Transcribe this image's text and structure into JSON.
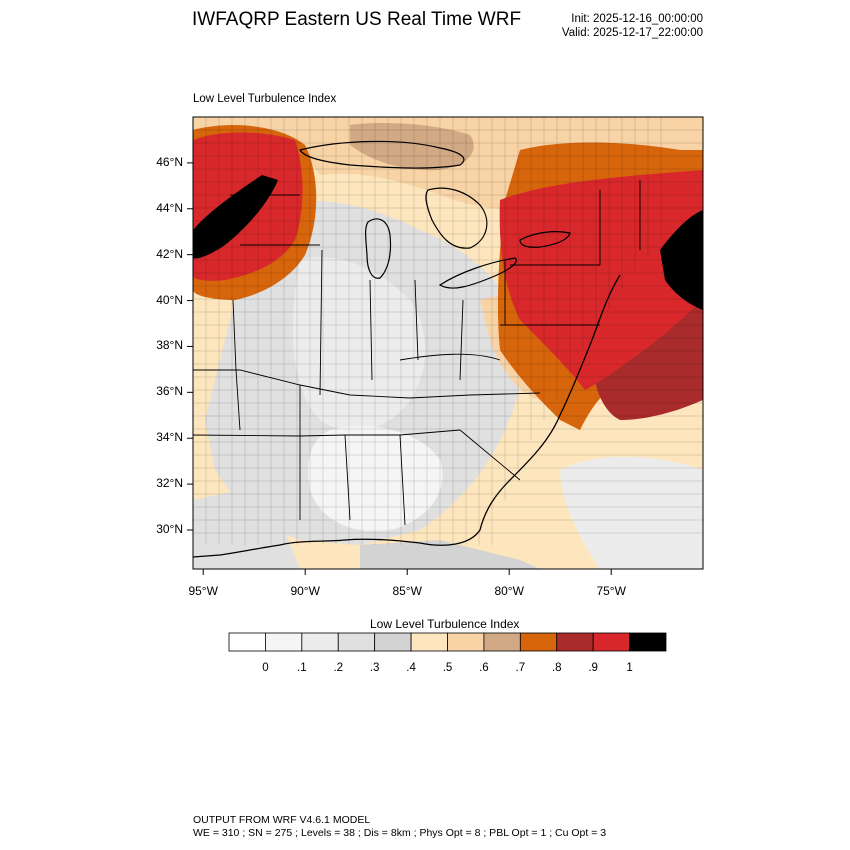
{
  "header": {
    "title": "IWFAQRP Eastern US Real Time WRF",
    "init": "Init: 2025-12-16_00:00:00",
    "valid": "Valid: 2025-12-17_22:00:00"
  },
  "map": {
    "field_label": "Low Level Turbulence Index",
    "lat_labels": [
      "46°N",
      "44°N",
      "42°N",
      "40°N",
      "38°N",
      "36°N",
      "34°N",
      "32°N",
      "30°N"
    ],
    "lon_labels": [
      "95°W",
      "90°W",
      "85°W",
      "80°W",
      "75°W"
    ],
    "lat_values": [
      46,
      44,
      42,
      40,
      38,
      36,
      34,
      32,
      30
    ],
    "lon_values": [
      -95,
      -90,
      -85,
      -80,
      -75
    ],
    "lat_range": [
      28.3,
      48.0
    ],
    "lon_range": [
      -95.5,
      -70.5
    ]
  },
  "colorbar": {
    "title": "Low Level Turbulence Index",
    "labels": [
      "0",
      ".1",
      ".2",
      ".3",
      ".4",
      ".5",
      ".6",
      ".7",
      ".8",
      ".9",
      "1"
    ],
    "colors": [
      "#ffffff",
      "#f5f5f5",
      "#ececec",
      "#e0e0e0",
      "#d3d3d3",
      "#fde6bd",
      "#f7d3a6",
      "#d2a985",
      "#d6650c",
      "#a92b2b",
      "#d8282b",
      "#000000"
    ]
  },
  "footer": {
    "line1": "OUTPUT FROM WRF V4.6.1 MODEL",
    "line2": "WE = 310 ; SN = 275 ; Levels = 38 ; Dis = 8km ; Phys Opt = 8 ; PBL Opt = 1 ; Cu Opt = 3"
  }
}
